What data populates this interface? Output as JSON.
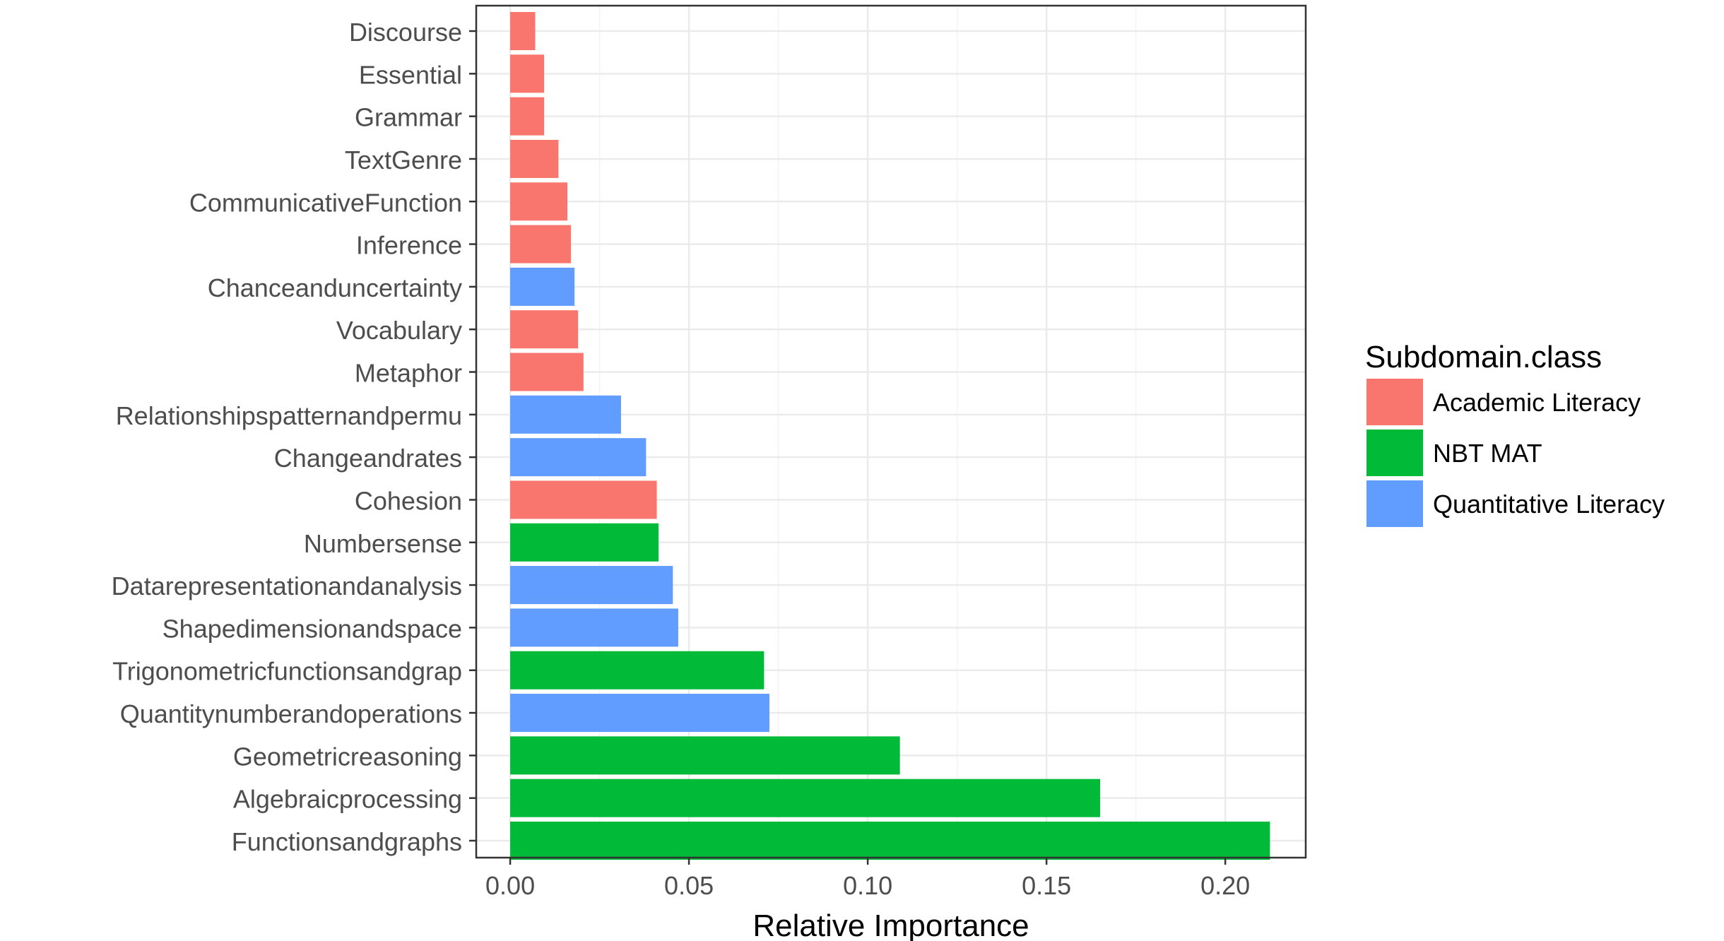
{
  "chart_data": {
    "type": "bar",
    "orientation": "horizontal",
    "xlabel": "Relative Importance",
    "ylabel": "",
    "xlim": [
      -0.0095,
      0.2225
    ],
    "x_ticks": [
      0.0,
      0.05,
      0.1,
      0.15,
      0.2
    ],
    "x_tick_labels": [
      "0.00",
      "0.05",
      "0.10",
      "0.15",
      "0.20"
    ],
    "grid": true,
    "legend": {
      "title": "Subdomain.class",
      "placement": "right",
      "entries": [
        {
          "label": "Academic Literacy",
          "color": "#F8766D"
        },
        {
          "label": "NBT MAT",
          "color": "#00BA38"
        },
        {
          "label": "Quantitative Literacy",
          "color": "#619CFF"
        }
      ]
    },
    "bars": [
      {
        "label": "Discourse",
        "value": 0.007,
        "group": "Academic Literacy"
      },
      {
        "label": "Essential",
        "value": 0.0095,
        "group": "Academic Literacy"
      },
      {
        "label": "Grammar",
        "value": 0.0095,
        "group": "Academic Literacy"
      },
      {
        "label": "TextGenre",
        "value": 0.0135,
        "group": "Academic Literacy"
      },
      {
        "label": "CommunicativeFunction",
        "value": 0.016,
        "group": "Academic Literacy"
      },
      {
        "label": "Inference",
        "value": 0.017,
        "group": "Academic Literacy"
      },
      {
        "label": "Chanceanduncertainty",
        "value": 0.018,
        "group": "Quantitative Literacy"
      },
      {
        "label": "Vocabulary",
        "value": 0.019,
        "group": "Academic Literacy"
      },
      {
        "label": "Metaphor",
        "value": 0.0205,
        "group": "Academic Literacy"
      },
      {
        "label": "Relationshipspatternandpermu",
        "value": 0.031,
        "group": "Quantitative Literacy"
      },
      {
        "label": "Changeandrates",
        "value": 0.038,
        "group": "Quantitative Literacy"
      },
      {
        "label": "Cohesion",
        "value": 0.041,
        "group": "Academic Literacy"
      },
      {
        "label": "Numbersense",
        "value": 0.0415,
        "group": "NBT MAT"
      },
      {
        "label": "Datarepresentationandanalysis",
        "value": 0.0455,
        "group": "Quantitative Literacy"
      },
      {
        "label": "Shapedimensionandspace",
        "value": 0.047,
        "group": "Quantitative Literacy"
      },
      {
        "label": "Trigonometricfunctionsandgrap",
        "value": 0.071,
        "group": "NBT MAT"
      },
      {
        "label": "Quantitynumberandoperations",
        "value": 0.0725,
        "group": "Quantitative Literacy"
      },
      {
        "label": "Geometricreasoning",
        "value": 0.109,
        "group": "NBT MAT"
      },
      {
        "label": "Algebraicprocessing",
        "value": 0.165,
        "group": "NBT MAT"
      },
      {
        "label": "Functionsandgraphs",
        "value": 0.2125,
        "group": "NBT MAT"
      }
    ]
  }
}
